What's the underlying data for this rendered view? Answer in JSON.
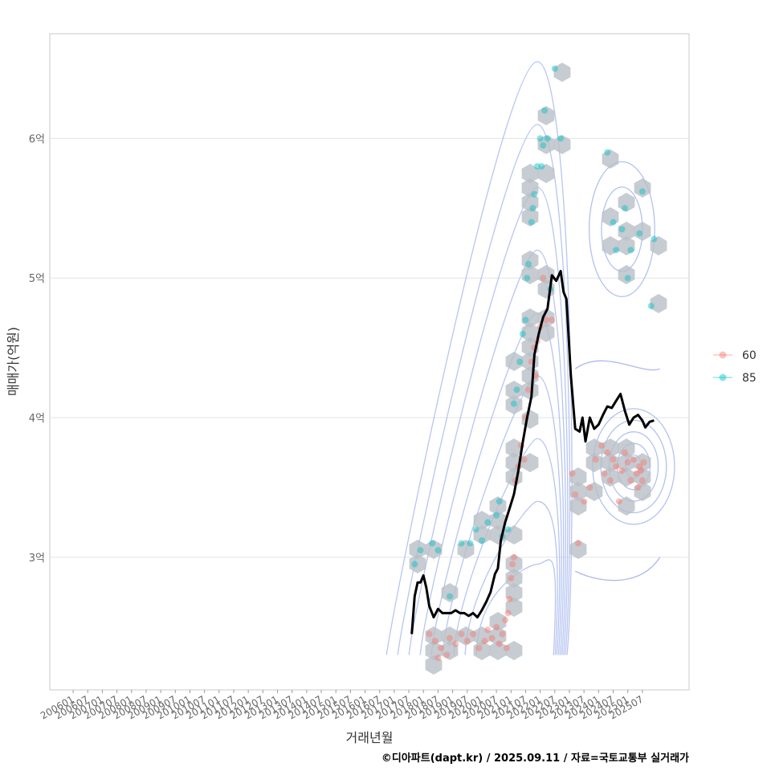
{
  "chart_data": {
    "type": "scatter",
    "xlabel": "거래년월",
    "ylabel": "매매가(억원)",
    "x_ticks": [
      "200601",
      "200607",
      "200701",
      "200707",
      "200801",
      "200807",
      "200901",
      "200907",
      "201001",
      "201007",
      "201101",
      "201107",
      "201201",
      "201207",
      "201301",
      "201307",
      "201401",
      "201407",
      "201501",
      "201507",
      "201601",
      "201607",
      "201701",
      "201707",
      "201801",
      "201807",
      "201901",
      "201907",
      "202001",
      "202007",
      "202101",
      "202107",
      "202201",
      "202207",
      "202301",
      "202307",
      "202401",
      "202407",
      "202501",
      "202507"
    ],
    "y_ticks": [
      {
        "value": 3,
        "label": "3억"
      },
      {
        "value": 4,
        "label": "4억"
      },
      {
        "value": 5,
        "label": "5억"
      },
      {
        "value": 6,
        "label": "6억"
      }
    ],
    "xlim": [
      2005.2,
      2027.1
    ],
    "ylim": [
      2.05,
      6.75
    ],
    "legend": {
      "position": "right",
      "entries": [
        {
          "label": "60",
          "color": "#f8766d"
        },
        {
          "label": "85",
          "color": "#00bfc4"
        }
      ]
    },
    "series": [
      {
        "name": "60",
        "color": "#f8766d",
        "points": [
          [
            2018.2,
            2.45
          ],
          [
            2018.4,
            2.4
          ],
          [
            2018.6,
            2.35
          ],
          [
            2018.8,
            2.3
          ],
          [
            2018.5,
            2.28
          ],
          [
            2018.9,
            2.42
          ],
          [
            2019.1,
            2.38
          ],
          [
            2019.3,
            2.45
          ],
          [
            2019.5,
            2.4
          ],
          [
            2019.7,
            2.45
          ],
          [
            2019.9,
            2.35
          ],
          [
            2020.1,
            2.4
          ],
          [
            2020.2,
            2.48
          ],
          [
            2020.35,
            2.42
          ],
          [
            2020.5,
            2.5
          ],
          [
            2020.6,
            2.38
          ],
          [
            2020.7,
            2.45
          ],
          [
            2020.8,
            2.55
          ],
          [
            2020.9,
            2.6
          ],
          [
            2020.95,
            2.7
          ],
          [
            2021.0,
            2.85
          ],
          [
            2021.05,
            2.95
          ],
          [
            2021.1,
            3.0
          ],
          [
            2020.85,
            2.35
          ],
          [
            2021.15,
            3.55
          ],
          [
            2021.25,
            3.65
          ],
          [
            2021.35,
            3.8
          ],
          [
            2021.45,
            3.7
          ],
          [
            2021.5,
            4.0
          ],
          [
            2021.6,
            4.2
          ],
          [
            2021.7,
            4.4
          ],
          [
            2021.8,
            4.5
          ],
          [
            2021.85,
            4.3
          ],
          [
            2021.9,
            4.55
          ],
          [
            2022.0,
            4.65
          ],
          [
            2022.1,
            5.0
          ],
          [
            2022.2,
            4.7
          ],
          [
            2022.4,
            4.7
          ],
          [
            2023.1,
            3.6
          ],
          [
            2023.2,
            3.45
          ],
          [
            2023.3,
            3.1
          ],
          [
            2023.5,
            3.4
          ],
          [
            2023.7,
            3.5
          ],
          [
            2023.9,
            3.7
          ],
          [
            2024.1,
            3.8
          ],
          [
            2024.2,
            3.6
          ],
          [
            2024.3,
            3.75
          ],
          [
            2024.4,
            3.55
          ],
          [
            2024.5,
            3.7
          ],
          [
            2024.6,
            3.65
          ],
          [
            2024.7,
            3.4
          ],
          [
            2024.8,
            3.62
          ],
          [
            2024.9,
            3.75
          ],
          [
            2025.0,
            3.68
          ],
          [
            2025.1,
            3.55
          ],
          [
            2025.2,
            3.7
          ],
          [
            2025.3,
            3.6
          ],
          [
            2025.35,
            3.5
          ],
          [
            2025.4,
            3.65
          ],
          [
            2025.45,
            3.62
          ],
          [
            2025.5,
            3.55
          ],
          [
            2025.55,
            3.68
          ]
        ]
      },
      {
        "name": "85",
        "color": "#00bfc4",
        "points": [
          [
            2017.7,
            2.95
          ],
          [
            2017.9,
            3.05
          ],
          [
            2018.3,
            3.1
          ],
          [
            2018.5,
            3.05
          ],
          [
            2018.9,
            2.72
          ],
          [
            2019.3,
            3.1
          ],
          [
            2019.6,
            3.1
          ],
          [
            2019.8,
            3.2
          ],
          [
            2020.0,
            3.12
          ],
          [
            2020.2,
            3.25
          ],
          [
            2020.5,
            3.3
          ],
          [
            2020.6,
            3.4
          ],
          [
            2020.7,
            3.15
          ],
          [
            2020.9,
            3.2
          ],
          [
            2021.1,
            4.1
          ],
          [
            2021.2,
            4.2
          ],
          [
            2021.3,
            4.4
          ],
          [
            2021.4,
            4.6
          ],
          [
            2021.5,
            4.7
          ],
          [
            2021.55,
            5.0
          ],
          [
            2021.6,
            5.1
          ],
          [
            2021.7,
            5.4
          ],
          [
            2021.75,
            5.5
          ],
          [
            2021.8,
            5.6
          ],
          [
            2021.9,
            5.8
          ],
          [
            2022.0,
            6.0
          ],
          [
            2022.05,
            5.8
          ],
          [
            2022.1,
            5.95
          ],
          [
            2022.15,
            6.2
          ],
          [
            2022.25,
            6.0
          ],
          [
            2022.35,
            4.92
          ],
          [
            2022.5,
            6.5
          ],
          [
            2022.7,
            6.0
          ],
          [
            2024.3,
            5.9
          ],
          [
            2024.5,
            5.4
          ],
          [
            2024.6,
            5.2
          ],
          [
            2024.8,
            5.35
          ],
          [
            2024.9,
            5.5
          ],
          [
            2025.0,
            5.0
          ],
          [
            2025.1,
            5.2
          ],
          [
            2025.4,
            5.32
          ],
          [
            2025.5,
            5.62
          ],
          [
            2025.8,
            4.8
          ],
          [
            2025.9,
            5.28
          ]
        ]
      }
    ],
    "trend_line": {
      "name": "trend",
      "color": "#000000",
      "points": [
        [
          2017.6,
          2.45
        ],
        [
          2017.7,
          2.72
        ],
        [
          2017.8,
          2.82
        ],
        [
          2017.9,
          2.82
        ],
        [
          2018.0,
          2.87
        ],
        [
          2018.1,
          2.78
        ],
        [
          2018.2,
          2.65
        ],
        [
          2018.35,
          2.57
        ],
        [
          2018.5,
          2.63
        ],
        [
          2018.65,
          2.6
        ],
        [
          2018.8,
          2.6
        ],
        [
          2018.95,
          2.6
        ],
        [
          2019.1,
          2.62
        ],
        [
          2019.25,
          2.6
        ],
        [
          2019.4,
          2.6
        ],
        [
          2019.55,
          2.58
        ],
        [
          2019.7,
          2.6
        ],
        [
          2019.85,
          2.57
        ],
        [
          2020.0,
          2.62
        ],
        [
          2020.15,
          2.68
        ],
        [
          2020.3,
          2.75
        ],
        [
          2020.45,
          2.88
        ],
        [
          2020.55,
          2.92
        ],
        [
          2020.65,
          3.12
        ],
        [
          2020.8,
          3.25
        ],
        [
          2020.95,
          3.35
        ],
        [
          2021.1,
          3.45
        ],
        [
          2021.25,
          3.62
        ],
        [
          2021.4,
          3.82
        ],
        [
          2021.55,
          4.0
        ],
        [
          2021.7,
          4.15
        ],
        [
          2021.8,
          4.45
        ],
        [
          2021.95,
          4.6
        ],
        [
          2022.1,
          4.72
        ],
        [
          2022.25,
          4.78
        ],
        [
          2022.4,
          5.02
        ],
        [
          2022.55,
          4.98
        ],
        [
          2022.7,
          5.05
        ],
        [
          2022.8,
          4.9
        ],
        [
          2022.9,
          4.85
        ],
        [
          2023.05,
          4.3
        ],
        [
          2023.2,
          3.92
        ],
        [
          2023.35,
          3.9
        ],
        [
          2023.45,
          4.0
        ],
        [
          2023.55,
          3.83
        ],
        [
          2023.7,
          4.0
        ],
        [
          2023.85,
          3.92
        ],
        [
          2024.0,
          3.95
        ],
        [
          2024.15,
          4.02
        ],
        [
          2024.3,
          4.08
        ],
        [
          2024.45,
          4.07
        ],
        [
          2024.6,
          4.12
        ],
        [
          2024.75,
          4.17
        ],
        [
          2024.9,
          4.05
        ],
        [
          2025.05,
          3.95
        ],
        [
          2025.2,
          4.0
        ],
        [
          2025.35,
          4.02
        ],
        [
          2025.5,
          3.98
        ],
        [
          2025.6,
          3.93
        ],
        [
          2025.75,
          3.97
        ],
        [
          2025.9,
          3.98
        ]
      ]
    }
  },
  "credit": "©디아파트(dapt.kr) / 2025.09.11 / 자료=국토교통부 실거래가"
}
